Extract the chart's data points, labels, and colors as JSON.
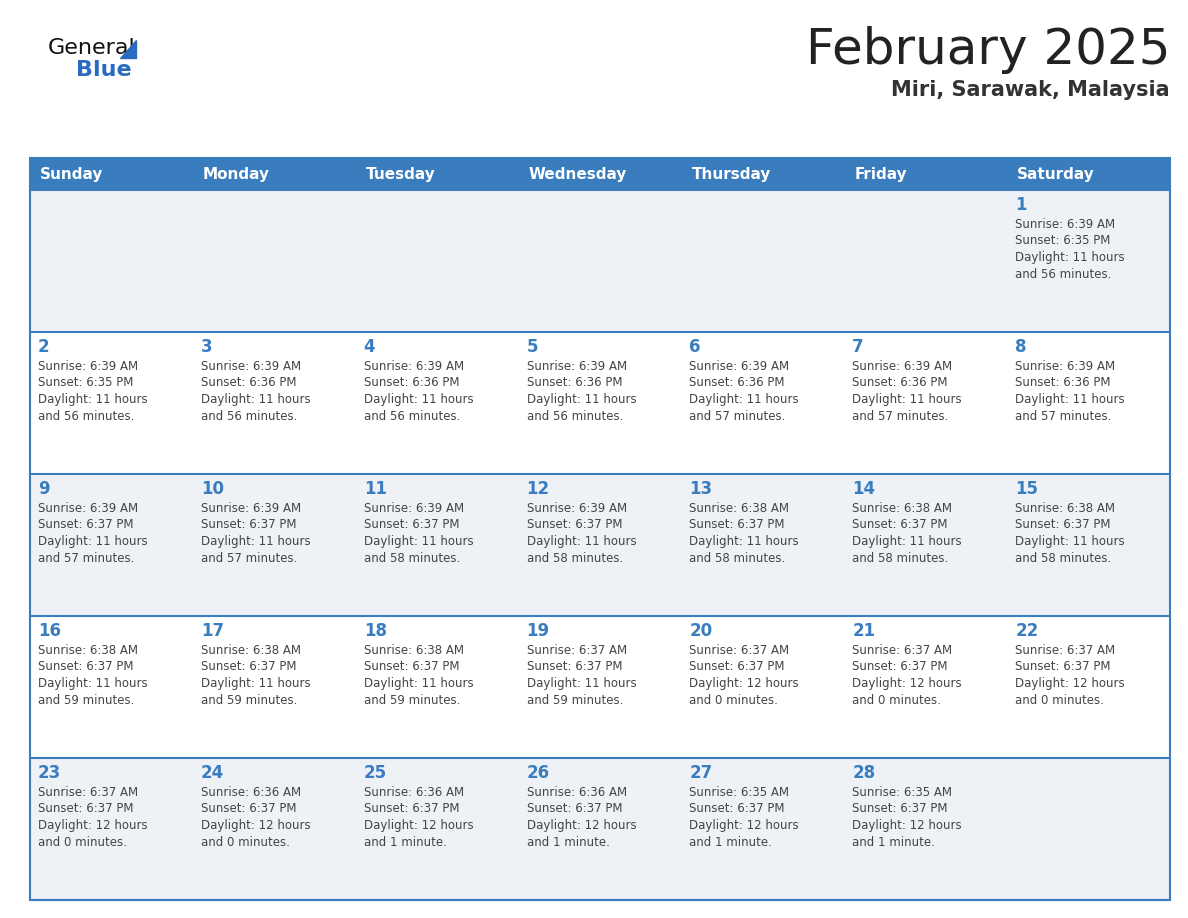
{
  "title": "February 2025",
  "subtitle": "Miri, Sarawak, Malaysia",
  "header_bg": "#3a7dbf",
  "header_text": "#ffffff",
  "day_names": [
    "Sunday",
    "Monday",
    "Tuesday",
    "Wednesday",
    "Thursday",
    "Friday",
    "Saturday"
  ],
  "row_bg_even": "#eef2f7",
  "row_bg_odd": "#ffffff",
  "cell_border": "#3a7dbf",
  "date_color": "#3a7dbf",
  "info_color": "#444444",
  "title_color": "#222222",
  "subtitle_color": "#333333",
  "logo_general_color": "#111111",
  "logo_blue_color": "#2a6abf",
  "logo_triangle_color": "#2a6abf",
  "calendar_data": [
    [
      {
        "day": null
      },
      {
        "day": null
      },
      {
        "day": null
      },
      {
        "day": null
      },
      {
        "day": null
      },
      {
        "day": null
      },
      {
        "day": 1,
        "sunrise": "6:39 AM",
        "sunset": "6:35 PM",
        "daylight": "11 hours",
        "daylight2": "and 56 minutes."
      }
    ],
    [
      {
        "day": 2,
        "sunrise": "6:39 AM",
        "sunset": "6:35 PM",
        "daylight": "11 hours",
        "daylight2": "and 56 minutes."
      },
      {
        "day": 3,
        "sunrise": "6:39 AM",
        "sunset": "6:36 PM",
        "daylight": "11 hours",
        "daylight2": "and 56 minutes."
      },
      {
        "day": 4,
        "sunrise": "6:39 AM",
        "sunset": "6:36 PM",
        "daylight": "11 hours",
        "daylight2": "and 56 minutes."
      },
      {
        "day": 5,
        "sunrise": "6:39 AM",
        "sunset": "6:36 PM",
        "daylight": "11 hours",
        "daylight2": "and 56 minutes."
      },
      {
        "day": 6,
        "sunrise": "6:39 AM",
        "sunset": "6:36 PM",
        "daylight": "11 hours",
        "daylight2": "and 57 minutes."
      },
      {
        "day": 7,
        "sunrise": "6:39 AM",
        "sunset": "6:36 PM",
        "daylight": "11 hours",
        "daylight2": "and 57 minutes."
      },
      {
        "day": 8,
        "sunrise": "6:39 AM",
        "sunset": "6:36 PM",
        "daylight": "11 hours",
        "daylight2": "and 57 minutes."
      }
    ],
    [
      {
        "day": 9,
        "sunrise": "6:39 AM",
        "sunset": "6:37 PM",
        "daylight": "11 hours",
        "daylight2": "and 57 minutes."
      },
      {
        "day": 10,
        "sunrise": "6:39 AM",
        "sunset": "6:37 PM",
        "daylight": "11 hours",
        "daylight2": "and 57 minutes."
      },
      {
        "day": 11,
        "sunrise": "6:39 AM",
        "sunset": "6:37 PM",
        "daylight": "11 hours",
        "daylight2": "and 58 minutes."
      },
      {
        "day": 12,
        "sunrise": "6:39 AM",
        "sunset": "6:37 PM",
        "daylight": "11 hours",
        "daylight2": "and 58 minutes."
      },
      {
        "day": 13,
        "sunrise": "6:38 AM",
        "sunset": "6:37 PM",
        "daylight": "11 hours",
        "daylight2": "and 58 minutes."
      },
      {
        "day": 14,
        "sunrise": "6:38 AM",
        "sunset": "6:37 PM",
        "daylight": "11 hours",
        "daylight2": "and 58 minutes."
      },
      {
        "day": 15,
        "sunrise": "6:38 AM",
        "sunset": "6:37 PM",
        "daylight": "11 hours",
        "daylight2": "and 58 minutes."
      }
    ],
    [
      {
        "day": 16,
        "sunrise": "6:38 AM",
        "sunset": "6:37 PM",
        "daylight": "11 hours",
        "daylight2": "and 59 minutes."
      },
      {
        "day": 17,
        "sunrise": "6:38 AM",
        "sunset": "6:37 PM",
        "daylight": "11 hours",
        "daylight2": "and 59 minutes."
      },
      {
        "day": 18,
        "sunrise": "6:38 AM",
        "sunset": "6:37 PM",
        "daylight": "11 hours",
        "daylight2": "and 59 minutes."
      },
      {
        "day": 19,
        "sunrise": "6:37 AM",
        "sunset": "6:37 PM",
        "daylight": "11 hours",
        "daylight2": "and 59 minutes."
      },
      {
        "day": 20,
        "sunrise": "6:37 AM",
        "sunset": "6:37 PM",
        "daylight": "12 hours",
        "daylight2": "and 0 minutes."
      },
      {
        "day": 21,
        "sunrise": "6:37 AM",
        "sunset": "6:37 PM",
        "daylight": "12 hours",
        "daylight2": "and 0 minutes."
      },
      {
        "day": 22,
        "sunrise": "6:37 AM",
        "sunset": "6:37 PM",
        "daylight": "12 hours",
        "daylight2": "and 0 minutes."
      }
    ],
    [
      {
        "day": 23,
        "sunrise": "6:37 AM",
        "sunset": "6:37 PM",
        "daylight": "12 hours",
        "daylight2": "and 0 minutes."
      },
      {
        "day": 24,
        "sunrise": "6:36 AM",
        "sunset": "6:37 PM",
        "daylight": "12 hours",
        "daylight2": "and 0 minutes."
      },
      {
        "day": 25,
        "sunrise": "6:36 AM",
        "sunset": "6:37 PM",
        "daylight": "12 hours",
        "daylight2": "and 1 minute."
      },
      {
        "day": 26,
        "sunrise": "6:36 AM",
        "sunset": "6:37 PM",
        "daylight": "12 hours",
        "daylight2": "and 1 minute."
      },
      {
        "day": 27,
        "sunrise": "6:35 AM",
        "sunset": "6:37 PM",
        "daylight": "12 hours",
        "daylight2": "and 1 minute."
      },
      {
        "day": 28,
        "sunrise": "6:35 AM",
        "sunset": "6:37 PM",
        "daylight": "12 hours",
        "daylight2": "and 1 minute."
      },
      {
        "day": null
      }
    ]
  ]
}
